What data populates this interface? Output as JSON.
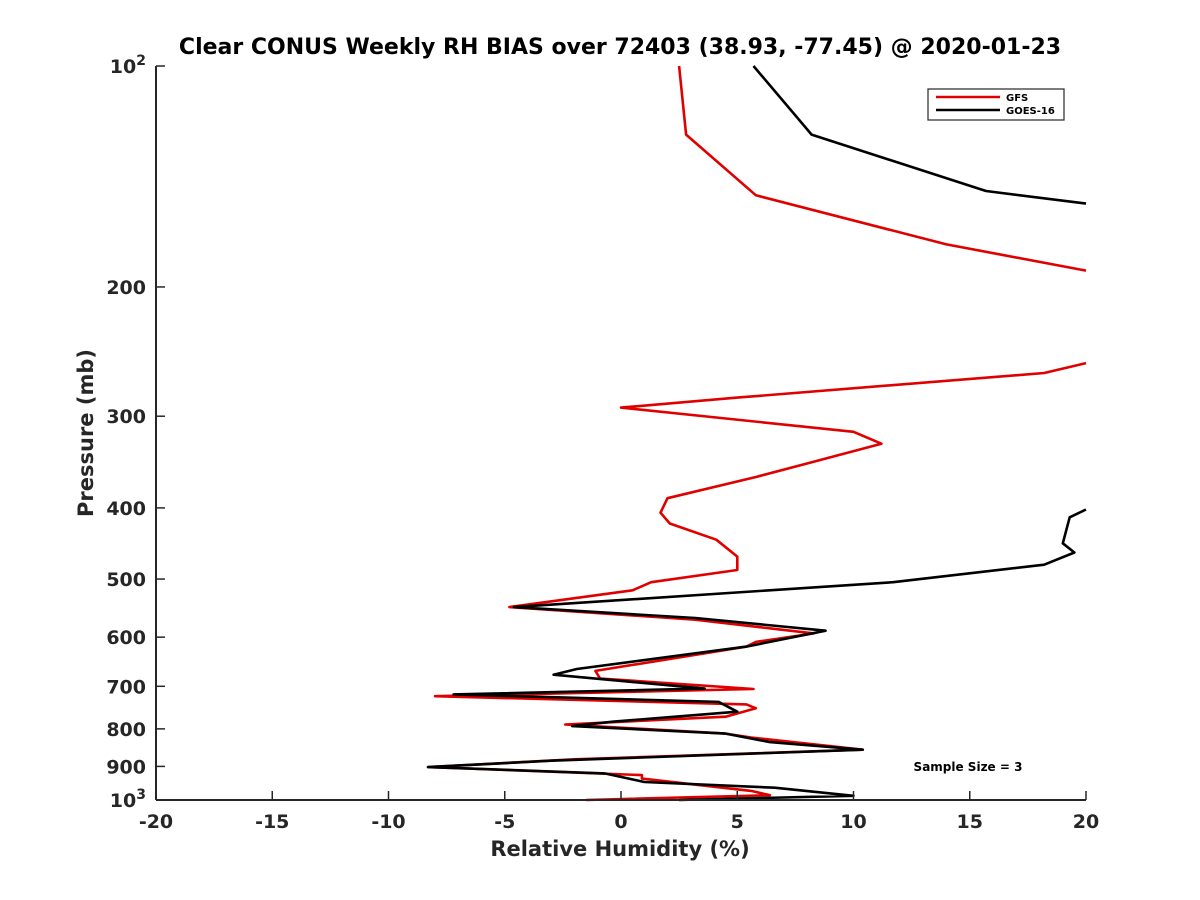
{
  "chart_data": {
    "type": "line",
    "title": "Clear CONUS Weekly RH BIAS over 72403 (38.93, -77.45) @ 2020-01-23",
    "xlabel": "Relative Humidity (%)",
    "ylabel": "Pressure (mb)",
    "xlim": [
      -20,
      20
    ],
    "ylim": [
      100,
      1000
    ],
    "y_scale": "log",
    "y_reversed": true,
    "grid": false,
    "legend_position": "top-right",
    "x_ticks": [
      "-20",
      "-15",
      "-10",
      "-5",
      "0",
      "5",
      "10",
      "15",
      "20"
    ],
    "y_ticks": [
      {
        "value": 100,
        "label": "10",
        "sup": "2"
      },
      {
        "value": 200,
        "label": "200",
        "sup": ""
      },
      {
        "value": 300,
        "label": "300",
        "sup": ""
      },
      {
        "value": 400,
        "label": "400",
        "sup": ""
      },
      {
        "value": 500,
        "label": "500",
        "sup": ""
      },
      {
        "value": 600,
        "label": "600",
        "sup": ""
      },
      {
        "value": 700,
        "label": "700",
        "sup": ""
      },
      {
        "value": 800,
        "label": "800",
        "sup": ""
      },
      {
        "value": 900,
        "label": "900",
        "sup": ""
      },
      {
        "value": 1000,
        "label": "10",
        "sup": "3"
      }
    ],
    "series": [
      {
        "name": "GFS",
        "color": "#e00000",
        "points": [
          [
            2.5,
            100
          ],
          [
            2.8,
            124
          ],
          [
            5.8,
            150
          ],
          [
            14,
            175
          ],
          [
            20,
            190
          ],
          [
            null,
            null
          ],
          [
            20,
            254
          ],
          [
            18.2,
            262
          ],
          [
            5,
            283
          ],
          [
            0,
            292
          ],
          [
            10,
            315
          ],
          [
            11.2,
            327
          ],
          [
            8,
            348
          ],
          [
            5.8,
            363
          ],
          [
            2,
            388
          ],
          [
            1.7,
            406
          ],
          [
            2.1,
            420
          ],
          [
            4.1,
            442
          ],
          [
            5,
            466
          ],
          [
            5,
            486
          ],
          [
            1.3,
            505
          ],
          [
            0.5,
            518
          ],
          [
            -4.8,
            546
          ],
          [
            3.2,
            568
          ],
          [
            8.3,
            593
          ],
          [
            5.8,
            609
          ],
          [
            5.4,
            618
          ],
          [
            -1.1,
            667
          ],
          [
            -0.9,
            683
          ],
          [
            5.7,
            706
          ],
          [
            -8.0,
            722
          ],
          [
            5.4,
            741
          ],
          [
            5.8,
            750
          ],
          [
            4.5,
            770
          ],
          [
            -2.4,
            789
          ],
          [
            4.5,
            812
          ],
          [
            5.6,
            822
          ],
          [
            10.4,
            854
          ],
          [
            -2.0,
            880
          ],
          [
            -8.3,
            902
          ],
          [
            0.9,
            925
          ],
          [
            0.9,
            935
          ],
          [
            5.6,
            972
          ],
          [
            6.4,
            985
          ],
          [
            -1.5,
            1000
          ]
        ]
      },
      {
        "name": "GOES-16",
        "color": "#000000",
        "points": [
          [
            5.7,
            100
          ],
          [
            8.2,
            124
          ],
          [
            15.7,
            148
          ],
          [
            20,
            154
          ],
          [
            null,
            null
          ],
          [
            20,
            402
          ],
          [
            19.3,
            412
          ],
          [
            19.0,
            447
          ],
          [
            19.5,
            460
          ],
          [
            18.2,
            478
          ],
          [
            11.7,
            505
          ],
          [
            -4.6,
            546
          ],
          [
            3.2,
            565
          ],
          [
            8.8,
            588
          ],
          [
            5.4,
            618
          ],
          [
            -1.9,
            663
          ],
          [
            -2.9,
            675
          ],
          [
            3.6,
            705
          ],
          [
            -7.2,
            718
          ],
          [
            4.2,
            735
          ],
          [
            5.0,
            758
          ],
          [
            -0.3,
            782
          ],
          [
            -2.1,
            793
          ],
          [
            4.5,
            812
          ],
          [
            6.4,
            834
          ],
          [
            10.4,
            854
          ],
          [
            -3,
            884
          ],
          [
            -8.3,
            902
          ],
          [
            -0.7,
            920
          ],
          [
            1,
            945
          ],
          [
            6.6,
            962
          ],
          [
            10,
            987
          ],
          [
            2.5,
            1000
          ]
        ]
      }
    ],
    "annotations": [
      "Sample Size = 3"
    ]
  }
}
